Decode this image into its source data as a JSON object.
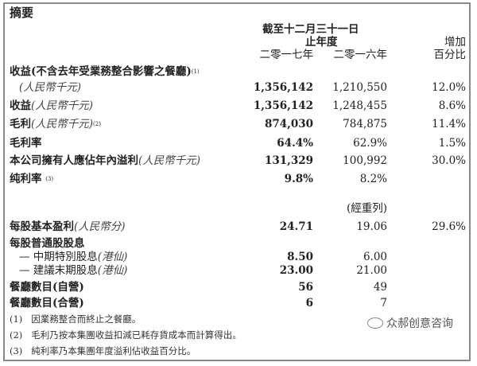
{
  "title": "摘要",
  "header": {
    "period_line1": "截至十二月三十一日",
    "period_line2": "止年度",
    "col_2017": "二零一七年",
    "col_2016": "二零一六年",
    "change_line1": "增加",
    "change_line2": "百分比"
  },
  "rows": [
    {
      "label": "收益(不含去年受業務整合影響之餐廳)",
      "sup": "(1)",
      "unit": "(人民幣千元)",
      "v2017": "1,356,142",
      "v2016": "1,210,550",
      "change": "12.0%"
    },
    {
      "label": "收益",
      "unit": "(人民幣千元)",
      "v2017": "1,356,142",
      "v2016": "1,248,455",
      "change": "8.6%"
    },
    {
      "label": "毛利",
      "unit": "(人民幣千元)",
      "sup": "(2)",
      "v2017": "874,030",
      "v2016": "784,875",
      "change": "11.4%"
    },
    {
      "label": "毛利率",
      "v2017": "64.4%",
      "v2016": "62.9%",
      "change": "1.5%"
    },
    {
      "label": "本公司擁有人應佔年內溢利",
      "unit": "(人民幣千元)",
      "v2017": "131,329",
      "v2016": "100,992",
      "change": "30.0%"
    },
    {
      "label": "纯利率",
      "sup": "(3)",
      "v2017": "9.8%",
      "v2016": "8.2%"
    },
    {
      "restated": "(經重列)"
    },
    {
      "label": "每股基本盈利",
      "unit": "(人民幣分)",
      "v2017": "24.71",
      "v2016": "19.06",
      "change": "29.6%"
    },
    {
      "label": "每股普通股股息"
    },
    {
      "label": "— 中期特別股息",
      "unit": "(港仙)",
      "v2017": "8.50",
      "v2016": "6.00"
    },
    {
      "label": "— 建議末期股息",
      "unit": "(港仙)",
      "v2017": "23.00",
      "v2016": "21.00"
    },
    {
      "label": "餐廳數目(自營)",
      "v2017": "56",
      "v2016": "49"
    },
    {
      "label": "餐廳數目(合營)",
      "v2017": "6",
      "v2016": "7"
    }
  ],
  "notes": [
    {
      "num": "(1)",
      "text": "因業務整合而終止之餐廳。"
    },
    {
      "num": "(2)",
      "text": "毛利乃按本集團收益扣減已耗存貨成本而計算得出。"
    },
    {
      "num": "(3)",
      "text": "純利率乃本集團年度溢利佔收益百分比。"
    }
  ],
  "watermark": "众郝创意咨询"
}
